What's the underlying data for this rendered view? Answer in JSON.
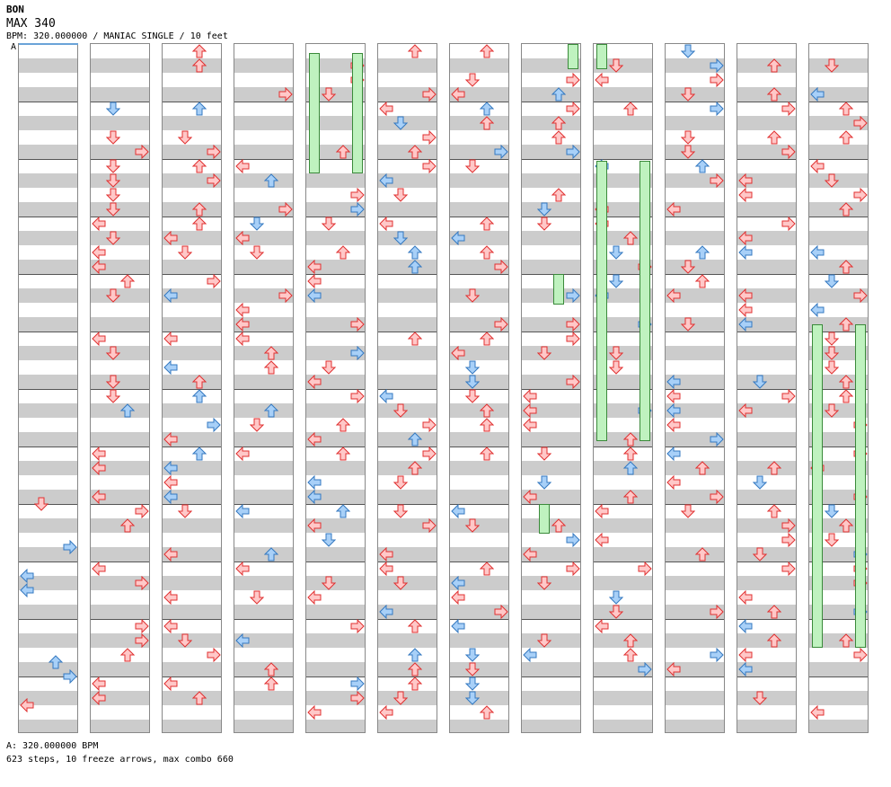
{
  "song": {
    "title": "BON",
    "subtitle": "MAX 340",
    "meta": "BPM: 320.000000 / MANIAC SINGLE / 10 feet",
    "marker": "A"
  },
  "footer": {
    "bpm_line": "A: 320.000000 BPM",
    "stats_line": "623 steps, 10 freeze arrows, max combo 660"
  },
  "colors": {
    "red_arrow_fill": "#ffc8c8",
    "red_arrow_stroke": "#e03030",
    "blue_arrow_fill": "#a8d0f8",
    "blue_arrow_stroke": "#3478c0",
    "freeze_fill": "#bff2bf",
    "freeze_stroke": "#3a8a3a",
    "stripe": "#cccccc"
  },
  "chart": {
    "column_count": 12,
    "measures_per_column": 12,
    "note_types": [
      "red",
      "blue"
    ],
    "directions": [
      "left",
      "down",
      "up",
      "right"
    ]
  }
}
